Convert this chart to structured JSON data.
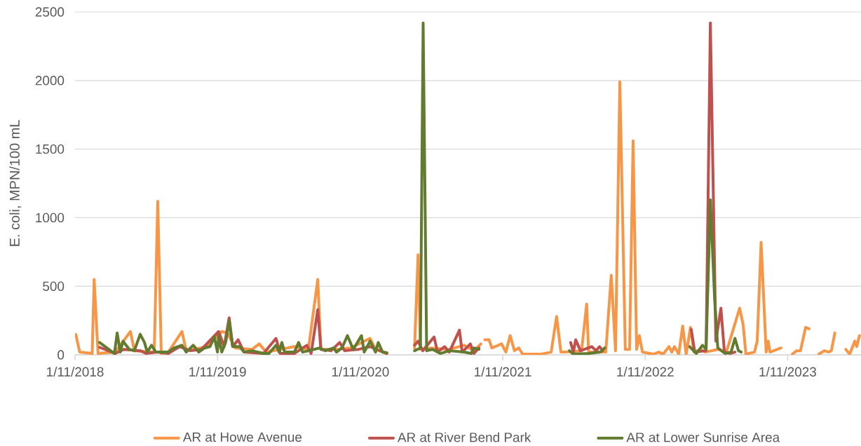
{
  "chart_data": {
    "type": "line",
    "ylabel": "E. coli, MPN/100 mL",
    "xlim": [
      "2018-11-01",
      "2024-05-07"
    ],
    "xticks": [
      {
        "value": "2018-11-01",
        "label": "1/11/2018"
      },
      {
        "value": "2019-11-01",
        "label": "1/11/2019"
      },
      {
        "value": "2020-11-01",
        "label": "1/11/2020"
      },
      {
        "value": "2021-11-01",
        "label": "1/11/2021"
      },
      {
        "value": "2022-11-01",
        "label": "1/11/2022"
      },
      {
        "value": "2023-11-01",
        "label": "1/11/2023"
      }
    ],
    "ylim": [
      0,
      2500
    ],
    "yticks": [
      0,
      500,
      1000,
      1500,
      2000,
      2500
    ],
    "grid": "y",
    "legend": "bottom",
    "series": [
      {
        "name": "AR at Howe Avenue",
        "color": "#f79646",
        "x": [
          "2018-11-03",
          "2018-11-13",
          "2018-12-15",
          "2018-12-20",
          "2018-12-30",
          "2019-02-12",
          "2019-03-23",
          "2019-04-02",
          "2019-05-23",
          "2019-06-01",
          "2019-06-10",
          "2019-06-28",
          "2019-08-02",
          "2019-08-13",
          "2019-10-06",
          "2019-11-12",
          "2019-11-26",
          "2019-12-17",
          "2020-01-29",
          "2020-02-16",
          "2020-03-05",
          "2020-04-10",
          "2020-05-16",
          "2020-06-21",
          "2020-07-15",
          "2020-07-23",
          "2020-09-01",
          "2020-10-07",
          "2020-11-26",
          "2020-12-10",
          "2021-01-08",
          "2021-02-10",
          "2021-03-20",
          "2021-03-29",
          "2021-04-04",
          "2021-04-30",
          "2021-06-17",
          "2021-07-25",
          "2021-08-19",
          "2021-09-06",
          "2021-09-11",
          "2021-09-16",
          "2021-09-27",
          "2021-10-04",
          "2021-10-29",
          "2021-11-09",
          "2021-11-20",
          "2021-12-01",
          "2021-12-12",
          "2021-12-22",
          "2022-02-07",
          "2022-03-05",
          "2022-03-19",
          "2022-03-30",
          "2022-04-10",
          "2022-05-22",
          "2022-06-04",
          "2022-06-09",
          "2022-07-23",
          "2022-08-06",
          "2022-08-17",
          "2022-08-28",
          "2022-09-11",
          "2022-09-22",
          "2022-10-01",
          "2022-10-10",
          "2022-10-17",
          "2022-10-25",
          "2022-11-22",
          "2022-12-06",
          "2022-12-17",
          "2023-01-01",
          "2023-01-08",
          "2023-01-15",
          "2023-01-26",
          "2023-02-05",
          "2023-02-14",
          "2023-02-25",
          "2023-03-06",
          "2023-03-24",
          "2023-04-04",
          "2023-05-06",
          "2023-05-28",
          "2023-07-01",
          "2023-07-10",
          "2023-07-17",
          "2023-08-08",
          "2023-08-15",
          "2023-08-25",
          "2023-09-07",
          "2023-09-12",
          "2023-09-17",
          "2023-10-15",
          "2023-10-30",
          "2023-11-13",
          "2023-11-24",
          "2023-12-04",
          "2023-12-17",
          "2023-12-26",
          "2024-01-07",
          "2024-01-20",
          "2024-02-03",
          "2024-02-14",
          "2024-02-21",
          "2024-03-01",
          "2024-03-14",
          "2024-03-29",
          "2024-04-08",
          "2024-04-21",
          "2024-04-26",
          "2024-05-03"
        ],
        "values": [
          150,
          20,
          10,
          550,
          10,
          20,
          170,
          30,
          20,
          1120,
          10,
          20,
          170,
          30,
          60,
          170,
          160,
          50,
          40,
          80,
          20,
          40,
          60,
          40,
          550,
          40,
          40,
          50,
          120,
          40,
          10,
          null,
          50,
          730,
          40,
          50,
          40,
          70,
          30,
          80,
          null,
          110,
          110,
          50,
          80,
          20,
          140,
          30,
          50,
          5,
          5,
          20,
          280,
          20,
          20,
          30,
          370,
          20,
          20,
          580,
          30,
          1990,
          40,
          40,
          1560,
          40,
          140,
          20,
          5,
          20,
          5,
          60,
          20,
          60,
          5,
          210,
          5,
          200,
          20,
          40,
          20,
          40,
          20,
          340,
          220,
          5,
          20,
          100,
          820,
          20,
          100,
          20,
          50,
          null,
          5,
          30,
          30,
          200,
          190,
          null,
          5,
          30,
          20,
          30,
          160,
          null,
          40,
          5,
          100,
          60,
          140
        ]
      },
      {
        "name": "AR at River Bend Park",
        "color": "#c0504d",
        "x": [
          "2019-01-03",
          "2019-02-12",
          "2019-03-06",
          "2019-04-17",
          "2019-05-02",
          "2019-05-30",
          "2019-06-28",
          "2019-07-27",
          "2019-08-24",
          "2019-09-21",
          "2019-11-04",
          "2019-11-18",
          "2019-12-01",
          "2019-12-10",
          "2019-12-24",
          "2020-01-08",
          "2020-02-27",
          "2020-03-30",
          "2020-04-10",
          "2020-05-16",
          "2020-06-17",
          "2020-06-28",
          "2020-07-15",
          "2020-07-23",
          "2020-08-18",
          "2020-09-09",
          "2020-09-22",
          "2020-10-28",
          "2020-11-26",
          "2021-01-08",
          "2021-02-10",
          "2021-03-20",
          "2021-03-29",
          "2021-04-10",
          "2021-05-09",
          "2021-05-18",
          "2021-06-05",
          "2021-06-17",
          "2021-07-13",
          "2021-07-20",
          "2021-08-10",
          "2021-08-19",
          "2021-09-01",
          "2021-12-30",
          "2022-04-24",
          "2022-05-01",
          "2022-05-07",
          "2022-05-19",
          "2022-06-17",
          "2022-06-28",
          "2022-07-07",
          "2022-07-15",
          "2022-11-01",
          "2023-02-27",
          "2023-03-08",
          "2023-04-06",
          "2023-04-17",
          "2023-05-01",
          "2023-05-14",
          "2023-05-23",
          "2023-06-06",
          "2023-06-19"
        ],
        "values": [
          55,
          10,
          40,
          30,
          10,
          20,
          10,
          60,
          30,
          40,
          170,
          60,
          270,
          60,
          110,
          20,
          10,
          120,
          10,
          10,
          70,
          10,
          330,
          40,
          30,
          90,
          30,
          40,
          60,
          10,
          null,
          70,
          100,
          30,
          130,
          20,
          60,
          20,
          180,
          20,
          80,
          10,
          50,
          null,
          90,
          20,
          110,
          30,
          60,
          30,
          60,
          30,
          null,
          185,
          20,
          30,
          2420,
          100,
          340,
          20,
          10,
          20
        ]
      },
      {
        "name": "AR at Lower Sunrise Area",
        "color": "#617b2f",
        "x": [
          "2019-01-03",
          "2019-02-10",
          "2019-02-17",
          "2019-02-25",
          "2019-03-04",
          "2019-03-20",
          "2019-04-02",
          "2019-04-17",
          "2019-04-28",
          "2019-05-05",
          "2019-05-16",
          "2019-05-27",
          "2019-06-28",
          "2019-07-13",
          "2019-08-02",
          "2019-08-13",
          "2019-08-31",
          "2019-09-14",
          "2019-09-29",
          "2019-10-13",
          "2019-10-24",
          "2019-11-01",
          "2019-11-04",
          "2019-11-12",
          "2019-11-22",
          "2019-12-01",
          "2019-12-10",
          "2019-12-28",
          "2020-01-08",
          "2020-01-29",
          "2020-02-27",
          "2020-03-12",
          "2020-03-30",
          "2020-04-07",
          "2020-04-14",
          "2020-04-21",
          "2020-05-16",
          "2020-05-27",
          "2020-06-06",
          "2020-07-20",
          "2020-08-03",
          "2020-08-25",
          "2020-09-01",
          "2020-09-15",
          "2020-09-29",
          "2020-10-14",
          "2020-11-04",
          "2020-11-11",
          "2020-11-26",
          "2020-12-10",
          "2020-12-17",
          "2020-12-28",
          "2021-01-08",
          "2021-02-10",
          "2021-03-20",
          "2021-04-04",
          "2021-04-11",
          "2021-04-20",
          "2021-05-05",
          "2021-05-25",
          "2021-06-17",
          "2021-07-25",
          "2021-08-12",
          "2021-08-19",
          "2021-09-01",
          "2021-12-30",
          "2022-04-21",
          "2022-05-01",
          "2022-06-09",
          "2022-07-09",
          "2022-07-20",
          "2022-11-01",
          "2023-02-23",
          "2023-03-12",
          "2023-03-28",
          "2023-04-06",
          "2023-04-17",
          "2023-04-28",
          "2023-05-06",
          "2023-05-25",
          "2023-06-09",
          "2023-06-19",
          "2023-06-28",
          "2023-07-05"
        ],
        "values": [
          90,
          10,
          160,
          20,
          100,
          40,
          30,
          150,
          90,
          20,
          70,
          20,
          20,
          50,
          70,
          20,
          70,
          20,
          50,
          60,
          130,
          20,
          140,
          20,
          90,
          250,
          60,
          60,
          20,
          30,
          10,
          10,
          70,
          20,
          90,
          20,
          20,
          90,
          20,
          50,
          30,
          50,
          20,
          50,
          140,
          40,
          140,
          20,
          100,
          20,
          90,
          20,
          15,
          null,
          30,
          50,
          2420,
          30,
          40,
          10,
          30,
          20,
          10,
          50,
          40,
          null,
          30,
          5,
          10,
          20,
          50,
          null,
          60,
          10,
          70,
          40,
          1130,
          400,
          50,
          10,
          20,
          120,
          30,
          20
        ]
      }
    ]
  }
}
